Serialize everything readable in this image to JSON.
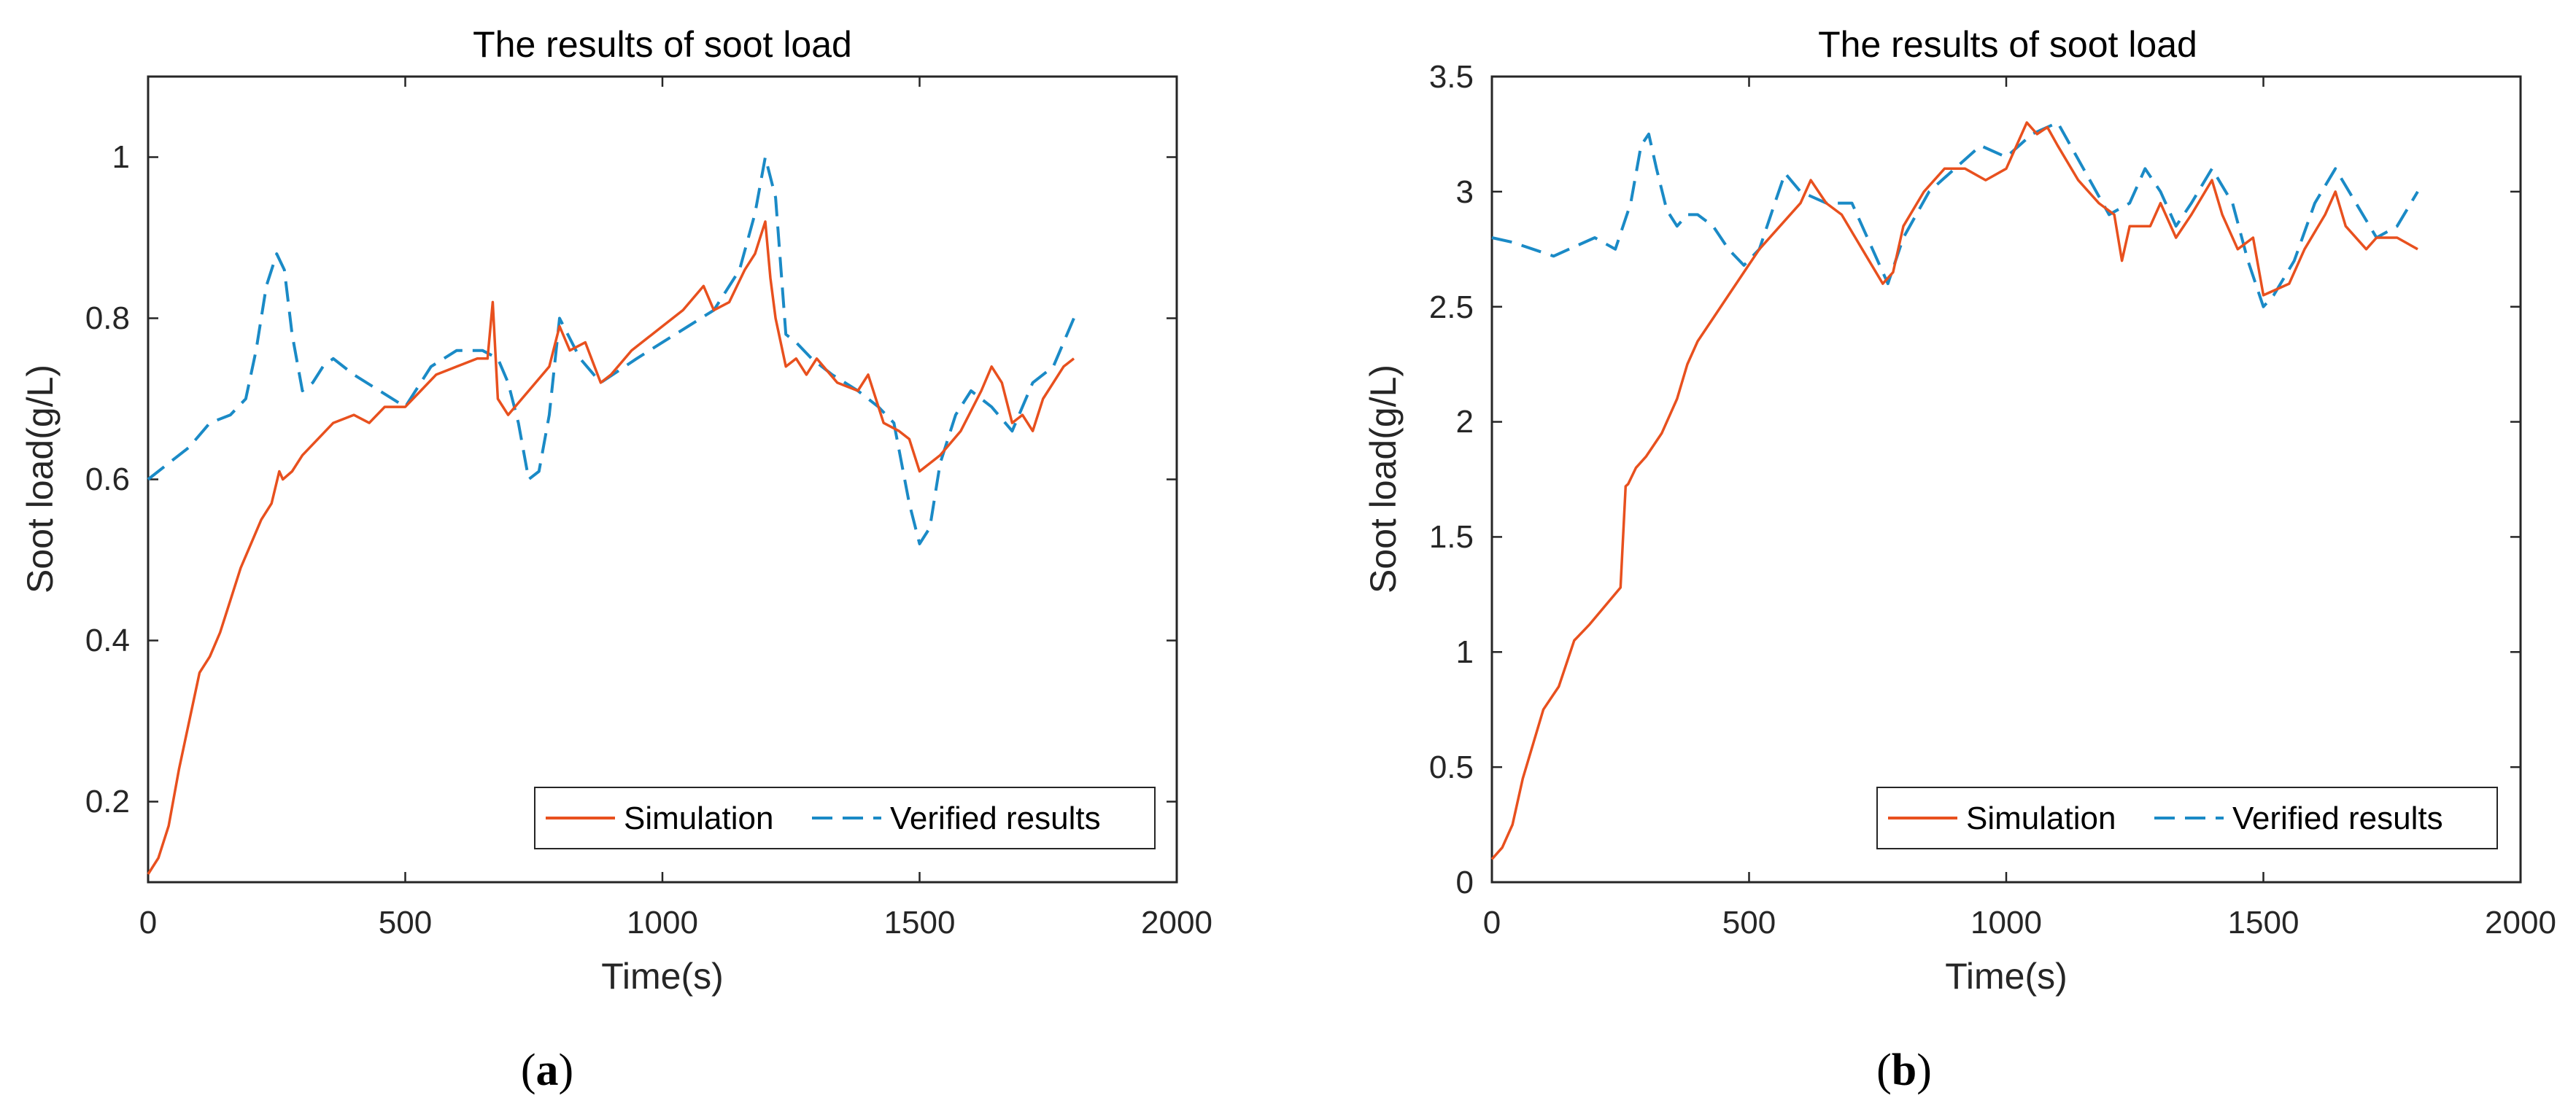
{
  "colors": {
    "simulation": "#e8501e",
    "verified": "#1a8ac6",
    "axis": "#262626"
  },
  "chart_data": [
    {
      "type": "line",
      "panel": "a",
      "title": "The results of soot load",
      "xlabel": "Time(s)",
      "ylabel": "Soot load(g/L)",
      "xlim": [
        0,
        2000
      ],
      "ylim": [
        0.1,
        1.1
      ],
      "xticks": [
        0,
        500,
        1000,
        1500,
        2000
      ],
      "xtick_labels": [
        "0",
        "500",
        "1000",
        "1500",
        "2000"
      ],
      "yticks": [
        0.2,
        0.4,
        0.6,
        0.8,
        1.0
      ],
      "ytick_labels": [
        "0.2",
        "0.4",
        "0.6",
        "0.8",
        "1"
      ],
      "legend": {
        "position": "bottom-right",
        "entries": [
          "Simulation",
          "Verified results"
        ]
      },
      "series": [
        {
          "name": "Simulation",
          "style": "solid",
          "x": [
            0,
            20,
            40,
            60,
            80,
            100,
            120,
            140,
            160,
            180,
            200,
            220,
            240,
            255,
            262,
            280,
            300,
            330,
            360,
            400,
            430,
            460,
            500,
            530,
            560,
            600,
            640,
            660,
            670,
            680,
            700,
            740,
            780,
            800,
            820,
            850,
            880,
            900,
            940,
            980,
            1000,
            1040,
            1080,
            1100,
            1130,
            1160,
            1180,
            1200,
            1210,
            1220,
            1240,
            1260,
            1280,
            1300,
            1340,
            1380,
            1400,
            1430,
            1460,
            1480,
            1500,
            1540,
            1580,
            1620,
            1640,
            1660,
            1680,
            1700,
            1720,
            1740,
            1760,
            1780,
            1800
          ],
          "y": [
            0.11,
            0.13,
            0.17,
            0.24,
            0.3,
            0.36,
            0.38,
            0.41,
            0.45,
            0.49,
            0.52,
            0.55,
            0.57,
            0.61,
            0.6,
            0.61,
            0.63,
            0.65,
            0.67,
            0.68,
            0.67,
            0.69,
            0.69,
            0.71,
            0.73,
            0.74,
            0.75,
            0.75,
            0.82,
            0.7,
            0.68,
            0.71,
            0.74,
            0.79,
            0.76,
            0.77,
            0.72,
            0.73,
            0.76,
            0.78,
            0.79,
            0.81,
            0.84,
            0.81,
            0.82,
            0.86,
            0.88,
            0.92,
            0.85,
            0.8,
            0.74,
            0.75,
            0.73,
            0.75,
            0.72,
            0.71,
            0.73,
            0.67,
            0.66,
            0.65,
            0.61,
            0.63,
            0.66,
            0.71,
            0.74,
            0.72,
            0.67,
            0.68,
            0.66,
            0.7,
            0.72,
            0.74,
            0.75
          ]
        },
        {
          "name": "Verified results",
          "style": "dashed",
          "x": [
            0,
            40,
            80,
            120,
            160,
            190,
            210,
            230,
            250,
            265,
            280,
            300,
            320,
            340,
            360,
            400,
            450,
            500,
            550,
            600,
            650,
            680,
            700,
            720,
            740,
            760,
            780,
            800,
            840,
            880,
            950,
            1000,
            1050,
            1100,
            1150,
            1180,
            1200,
            1220,
            1240,
            1260,
            1290,
            1330,
            1380,
            1420,
            1450,
            1480,
            1500,
            1520,
            1540,
            1570,
            1600,
            1640,
            1680,
            1720,
            1760,
            1800
          ],
          "y": [
            0.6,
            0.62,
            0.64,
            0.67,
            0.68,
            0.7,
            0.76,
            0.84,
            0.88,
            0.86,
            0.78,
            0.71,
            0.72,
            0.74,
            0.75,
            0.73,
            0.71,
            0.69,
            0.74,
            0.76,
            0.76,
            0.75,
            0.72,
            0.67,
            0.6,
            0.61,
            0.68,
            0.8,
            0.75,
            0.72,
            0.75,
            0.77,
            0.79,
            0.81,
            0.86,
            0.93,
            1.0,
            0.95,
            0.78,
            0.77,
            0.75,
            0.73,
            0.71,
            0.69,
            0.67,
            0.57,
            0.52,
            0.54,
            0.62,
            0.68,
            0.71,
            0.69,
            0.66,
            0.72,
            0.74,
            0.8
          ]
        }
      ]
    },
    {
      "type": "line",
      "panel": "b",
      "title": "The results of soot load",
      "xlabel": "Time(s)",
      "ylabel": "Soot load(g/L)",
      "xlim": [
        0,
        2000
      ],
      "ylim": [
        0,
        3.5
      ],
      "xticks": [
        0,
        500,
        1000,
        1500,
        2000
      ],
      "xtick_labels": [
        "0",
        "500",
        "1000",
        "1500",
        "2000"
      ],
      "yticks": [
        0,
        0.5,
        1,
        1.5,
        2,
        2.5,
        3,
        3.5
      ],
      "ytick_labels": [
        "0",
        "0.5",
        "1",
        "1.5",
        "2",
        "2.5",
        "3",
        "3.5"
      ],
      "legend": {
        "position": "bottom-right",
        "entries": [
          "Simulation",
          "Verified results"
        ]
      },
      "series": [
        {
          "name": "Simulation",
          "style": "solid",
          "x": [
            0,
            20,
            40,
            60,
            80,
            100,
            130,
            160,
            190,
            220,
            250,
            260,
            265,
            280,
            300,
            330,
            360,
            380,
            400,
            430,
            460,
            490,
            520,
            560,
            600,
            620,
            650,
            680,
            720,
            760,
            780,
            800,
            840,
            880,
            920,
            960,
            1000,
            1040,
            1060,
            1080,
            1100,
            1140,
            1180,
            1210,
            1225,
            1240,
            1280,
            1300,
            1330,
            1360,
            1400,
            1420,
            1450,
            1480,
            1500,
            1520,
            1550,
            1580,
            1620,
            1640,
            1660,
            1700,
            1720,
            1740,
            1760,
            1800
          ],
          "y": [
            0.1,
            0.15,
            0.25,
            0.45,
            0.6,
            0.75,
            0.85,
            1.05,
            1.12,
            1.2,
            1.28,
            1.72,
            1.73,
            1.8,
            1.85,
            1.95,
            2.1,
            2.25,
            2.35,
            2.45,
            2.55,
            2.65,
            2.75,
            2.85,
            2.95,
            3.05,
            2.95,
            2.9,
            2.75,
            2.6,
            2.65,
            2.85,
            3.0,
            3.1,
            3.1,
            3.05,
            3.1,
            3.3,
            3.25,
            3.28,
            3.2,
            3.05,
            2.95,
            2.9,
            2.7,
            2.85,
            2.85,
            2.95,
            2.8,
            2.9,
            3.05,
            2.9,
            2.75,
            2.8,
            2.55,
            2.57,
            2.6,
            2.75,
            2.9,
            3.0,
            2.85,
            2.75,
            2.8,
            2.8,
            2.8,
            2.75
          ]
        },
        {
          "name": "Verified results",
          "style": "dashed",
          "x": [
            0,
            40,
            80,
            120,
            160,
            200,
            240,
            270,
            290,
            305,
            320,
            340,
            360,
            380,
            400,
            430,
            460,
            490,
            520,
            550,
            570,
            600,
            650,
            700,
            740,
            770,
            800,
            850,
            900,
            950,
            1000,
            1050,
            1100,
            1150,
            1200,
            1240,
            1270,
            1300,
            1330,
            1360,
            1400,
            1440,
            1470,
            1500,
            1520,
            1560,
            1600,
            1640,
            1680,
            1720,
            1760,
            1800
          ],
          "y": [
            2.8,
            2.78,
            2.75,
            2.72,
            2.76,
            2.8,
            2.75,
            2.95,
            3.2,
            3.25,
            3.1,
            2.92,
            2.85,
            2.9,
            2.9,
            2.85,
            2.75,
            2.68,
            2.75,
            2.95,
            3.08,
            3.0,
            2.95,
            2.95,
            2.75,
            2.6,
            2.8,
            3.0,
            3.1,
            3.2,
            3.15,
            3.25,
            3.3,
            3.1,
            2.9,
            2.95,
            3.1,
            3.0,
            2.85,
            2.95,
            3.1,
            2.95,
            2.7,
            2.5,
            2.55,
            2.7,
            2.95,
            3.1,
            2.95,
            2.8,
            2.85,
            3.0
          ]
        }
      ]
    }
  ]
}
